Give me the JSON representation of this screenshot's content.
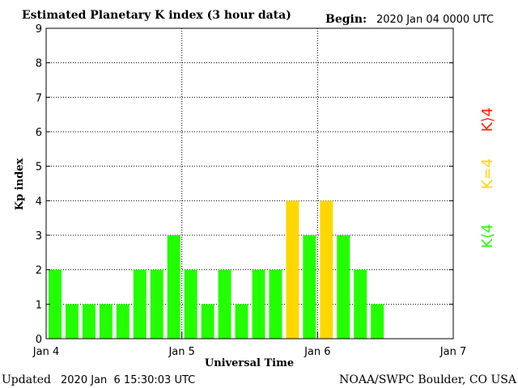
{
  "header": {
    "title": "Estimated Planetary K index (3 hour data)",
    "begin_label": "Begin:",
    "begin_value": "2020 Jan 04 0000 UTC"
  },
  "footer": {
    "updated_label": "Updated",
    "updated_value": "2020 Jan  6 15:30:03 UTC",
    "source": "NOAA/SWPC Boulder, CO USA"
  },
  "legend": {
    "low": "K⟨4",
    "equal": "K=4",
    "high": "K⟩4"
  },
  "colors": {
    "low": "#22ff00",
    "equal": "#ffd700",
    "high": "#ff2200",
    "grid": "#000000"
  },
  "chart_data": {
    "type": "bar",
    "title": "Estimated Planetary K index (3 hour data)",
    "xlabel": "Universal Time",
    "ylabel": "Kp index",
    "ylim": [
      0,
      9
    ],
    "yticks": [
      "0",
      "1",
      "2",
      "3",
      "4",
      "5",
      "6",
      "7",
      "8",
      "9"
    ],
    "xticks": [
      "Jan 4",
      "Jan 5",
      "Jan 6",
      "Jan 7"
    ],
    "interval_hours": 3,
    "slots_total": 24,
    "values": [
      2,
      1,
      1,
      1,
      1,
      2,
      2,
      3,
      2,
      1,
      2,
      1,
      2,
      2,
      4,
      3,
      4,
      3,
      2,
      1
    ],
    "grid": "dotted"
  }
}
